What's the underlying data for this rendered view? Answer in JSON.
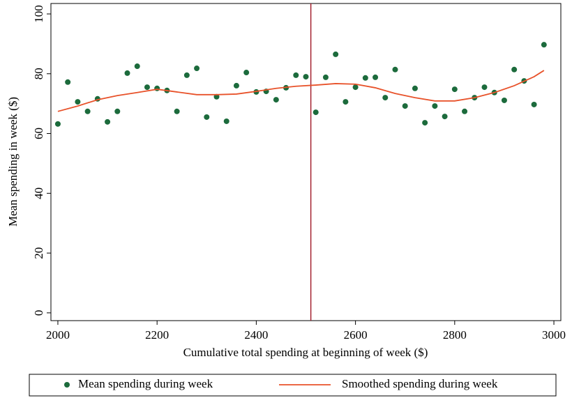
{
  "chart_data": {
    "type": "scatter",
    "y_label": "Mean spending in week ($)",
    "x_label": "Cumulative total spending at beginning of week ($)",
    "xlim": [
      1986,
      3014
    ],
    "ylim": [
      -2.6,
      103.5
    ],
    "xticks": [
      2000,
      2200,
      2400,
      2600,
      2800,
      3000
    ],
    "yticks": [
      0,
      20,
      40,
      60,
      80,
      100
    ],
    "vline": {
      "x": 2510,
      "color": "#a3202e"
    },
    "legend": "bottom",
    "series": [
      {
        "name": "Mean spending during week",
        "type": "scatter",
        "color": "#1c6b3c",
        "x": [
          2000,
          2020,
          2040,
          2060,
          2080,
          2100,
          2120,
          2140,
          2160,
          2180,
          2200,
          2220,
          2240,
          2260,
          2280,
          2300,
          2320,
          2340,
          2360,
          2380,
          2400,
          2420,
          2440,
          2460,
          2480,
          2500,
          2520,
          2540,
          2560,
          2580,
          2600,
          2620,
          2640,
          2660,
          2680,
          2700,
          2720,
          2740,
          2760,
          2780,
          2800,
          2820,
          2840,
          2860,
          2880,
          2900,
          2920,
          2940,
          2960,
          2980
        ],
        "values": [
          63.2,
          77.2,
          70.6,
          67.4,
          71.6,
          63.9,
          67.4,
          80.2,
          82.5,
          75.5,
          75.1,
          74.4,
          67.4,
          79.5,
          81.8,
          65.5,
          72.3,
          64.1,
          76,
          80.4,
          73.9,
          74.1,
          71.3,
          75.3,
          79.5,
          79,
          67.1,
          78.8,
          86.5,
          70.6,
          75.5,
          78.6,
          78.8,
          72,
          81.4,
          69.2,
          75.1,
          63.6,
          69.2,
          65.7,
          74.8,
          67.4,
          72,
          75.5,
          73.7,
          71.1,
          81.4,
          77.6,
          69.7,
          89.7
        ]
      },
      {
        "name": "Smoothed spending during week",
        "type": "line",
        "color": "#e8522a",
        "x": [
          2000,
          2040,
          2080,
          2120,
          2160,
          2200,
          2240,
          2280,
          2320,
          2360,
          2400,
          2440,
          2480,
          2520,
          2560,
          2600,
          2640,
          2680,
          2720,
          2760,
          2800,
          2840,
          2880,
          2920,
          2960,
          2980
        ],
        "values": [
          67.4,
          69.2,
          71.3,
          72.7,
          73.7,
          74.8,
          73.9,
          73,
          73,
          73.2,
          74.1,
          75.1,
          75.8,
          76.2,
          76.7,
          76.5,
          75.3,
          73.4,
          72,
          70.9,
          70.9,
          72,
          73.7,
          76,
          79,
          81.1
        ]
      }
    ]
  }
}
